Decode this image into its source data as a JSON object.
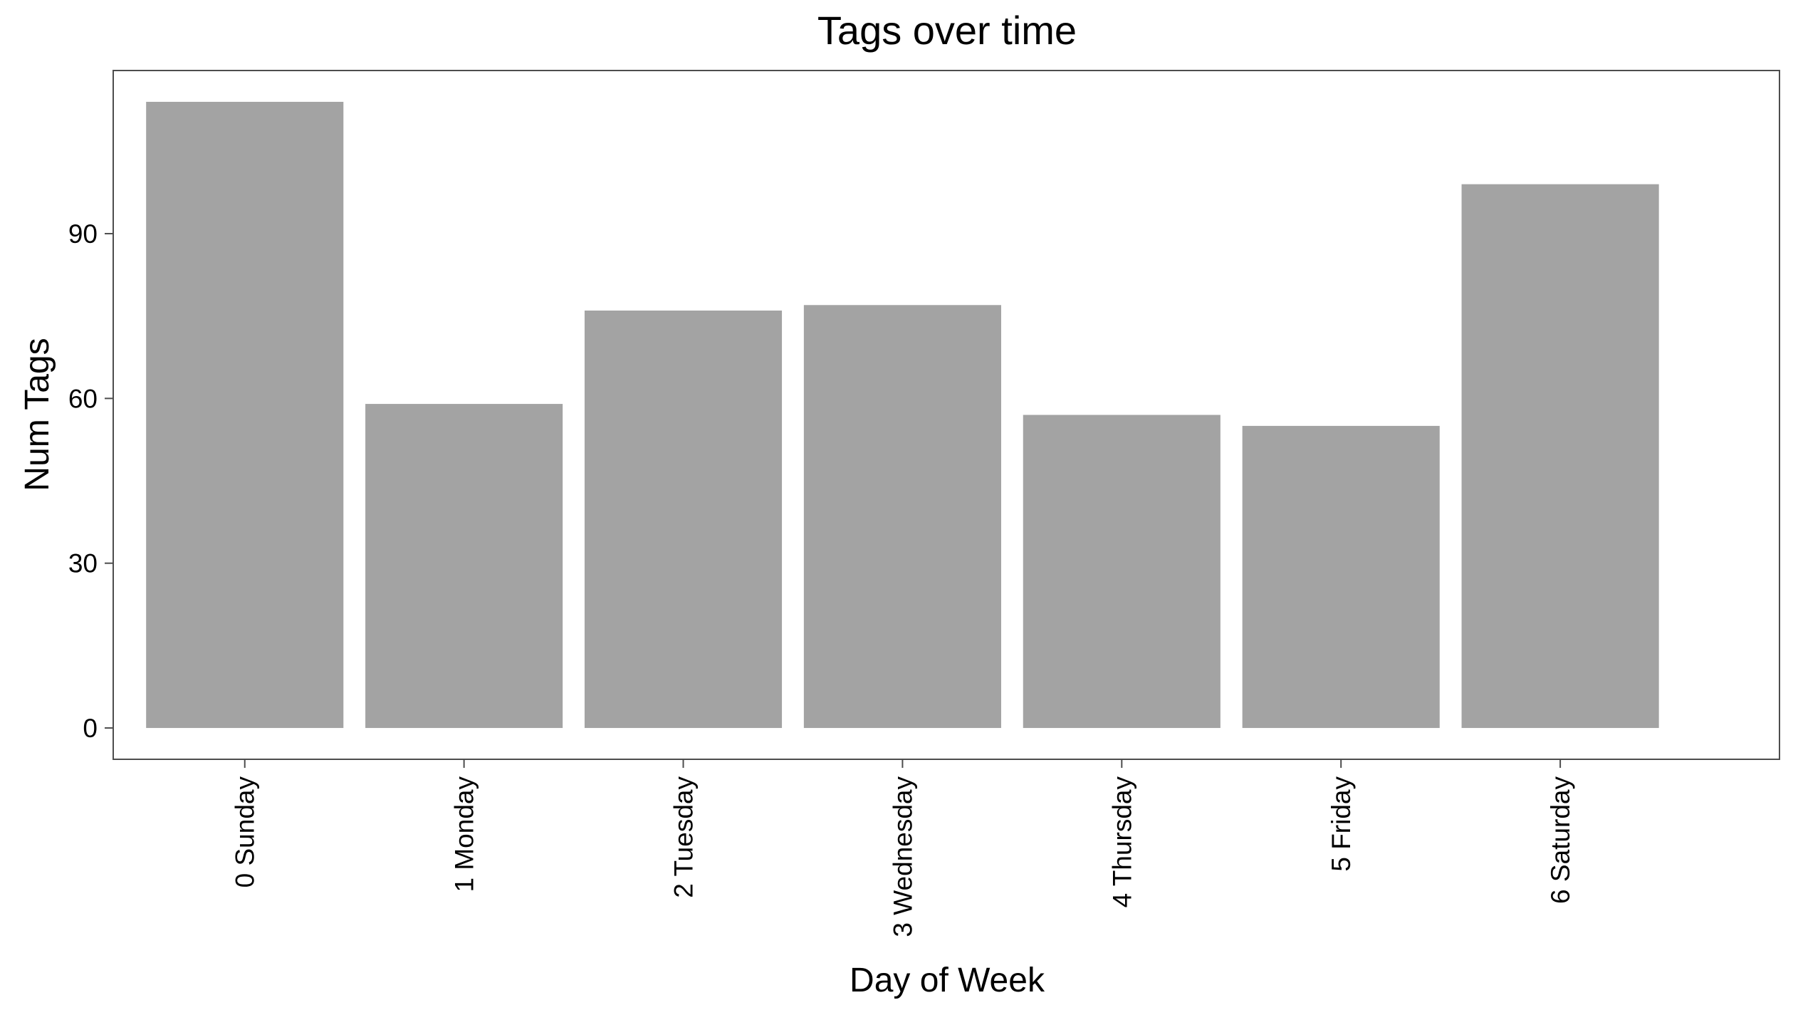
{
  "chart_data": {
    "type": "bar",
    "title": "Tags over time",
    "xlabel": "Day of Week",
    "ylabel": "Num Tags",
    "categories": [
      "0 Sunday",
      "1 Monday",
      "2 Tuesday",
      "3 Wednesday",
      "4 Thursday",
      "5 Friday",
      "6 Saturday"
    ],
    "values": [
      114,
      59,
      76,
      77,
      57,
      55,
      99
    ],
    "ylim": [
      -5.7,
      119.7
    ],
    "yticks": [
      0,
      30,
      60,
      90
    ],
    "bar_color": "#a3a3a3",
    "panel_border_color": "#4d4d4d",
    "grid": false,
    "legend": "none"
  }
}
